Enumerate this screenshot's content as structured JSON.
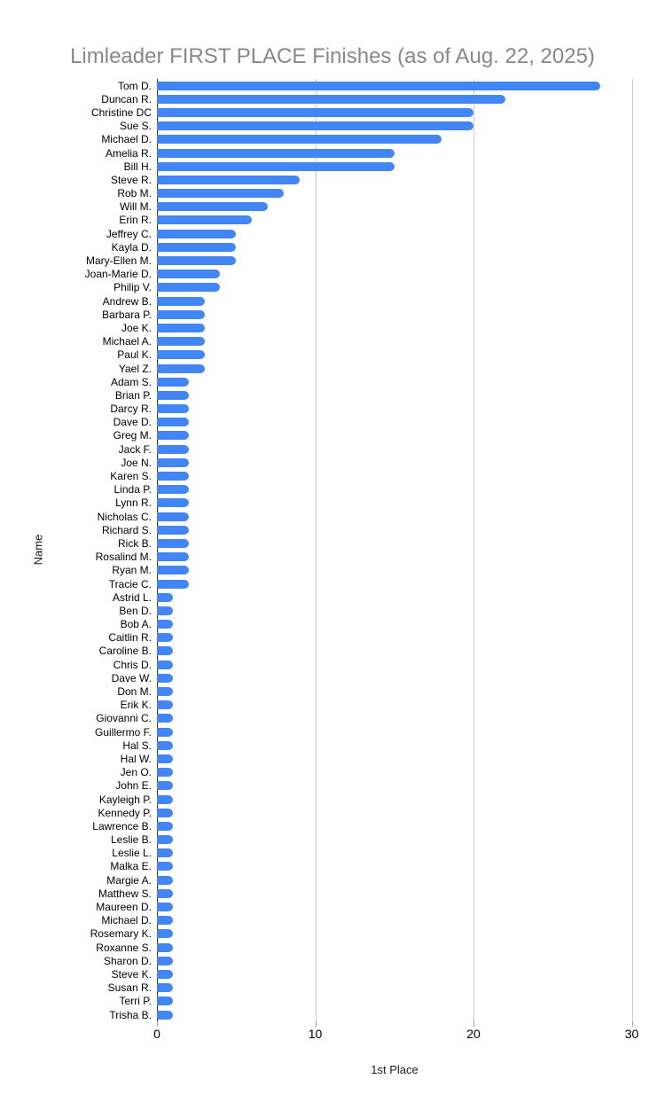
{
  "chart_data": {
    "type": "bar",
    "orientation": "horizontal",
    "title": "Limleader FIRST PLACE Finishes (as of Aug. 22, 2025)",
    "xlabel": "1st Place",
    "ylabel": "Name",
    "xlim": [
      0,
      30
    ],
    "x_ticks": [
      0,
      10,
      20,
      30
    ],
    "grid": "vertical-only",
    "legend": "none",
    "bar_color": "#4285f4",
    "colors": {
      "bar": "#4285f4",
      "title_text": "#888888",
      "axis_text": "#000000",
      "gridline": "#cccccc",
      "baseline": "#333333"
    },
    "categories": [
      "Tom D.",
      "Duncan R.",
      "Christine DC",
      "Sue S.",
      "Michael D.",
      "Amelia R.",
      "Bill H.",
      "Steve R.",
      "Rob M.",
      "Will M.",
      "Erin R.",
      "Jeffrey C.",
      "Kayla D.",
      "Mary-Ellen M.",
      "Joan-Marie D.",
      "Philip V.",
      "Andrew B.",
      "Barbara P.",
      "Joe K.",
      "Michael A.",
      "Paul K.",
      "Yael Z.",
      "Adam S.",
      "Brian P.",
      "Darcy R.",
      "Dave D.",
      "Greg M.",
      "Jack F.",
      "Joe N.",
      "Karen S.",
      "Linda P.",
      "Lynn R.",
      "Nicholas C.",
      "Richard S.",
      "Rick B.",
      "Rosalind M.",
      "Ryan M.",
      "Tracie C.",
      "Astrid L.",
      "Ben D.",
      "Bob A.",
      "Caitlin R.",
      "Caroline B.",
      "Chris D.",
      "Dave W.",
      "Don M.",
      "Erik K.",
      "Giovanni C.",
      "Guillermo F.",
      "Hal S.",
      "Hal W.",
      "Jen O.",
      "John E.",
      "Kayleigh P.",
      "Kennedy P.",
      "Lawrence B.",
      "Leslie B.",
      "Leslie L.",
      "Malka E.",
      "Margie A.",
      "Matthew S.",
      "Maureen D.",
      "Michael D.",
      "Rosemary K.",
      "Roxanne S.",
      "Sharon D.",
      "Steve K.",
      "Susan R.",
      "Terri P.",
      "Trisha B."
    ],
    "values": [
      28,
      22,
      20,
      20,
      18,
      15,
      15,
      9,
      8,
      7,
      6,
      5,
      5,
      5,
      4,
      4,
      3,
      3,
      3,
      3,
      3,
      3,
      2,
      2,
      2,
      2,
      2,
      2,
      2,
      2,
      2,
      2,
      2,
      2,
      2,
      2,
      2,
      2,
      1,
      1,
      1,
      1,
      1,
      1,
      1,
      1,
      1,
      1,
      1,
      1,
      1,
      1,
      1,
      1,
      1,
      1,
      1,
      1,
      1,
      1,
      1,
      1,
      1,
      1,
      1,
      1,
      1,
      1,
      1,
      1
    ]
  }
}
